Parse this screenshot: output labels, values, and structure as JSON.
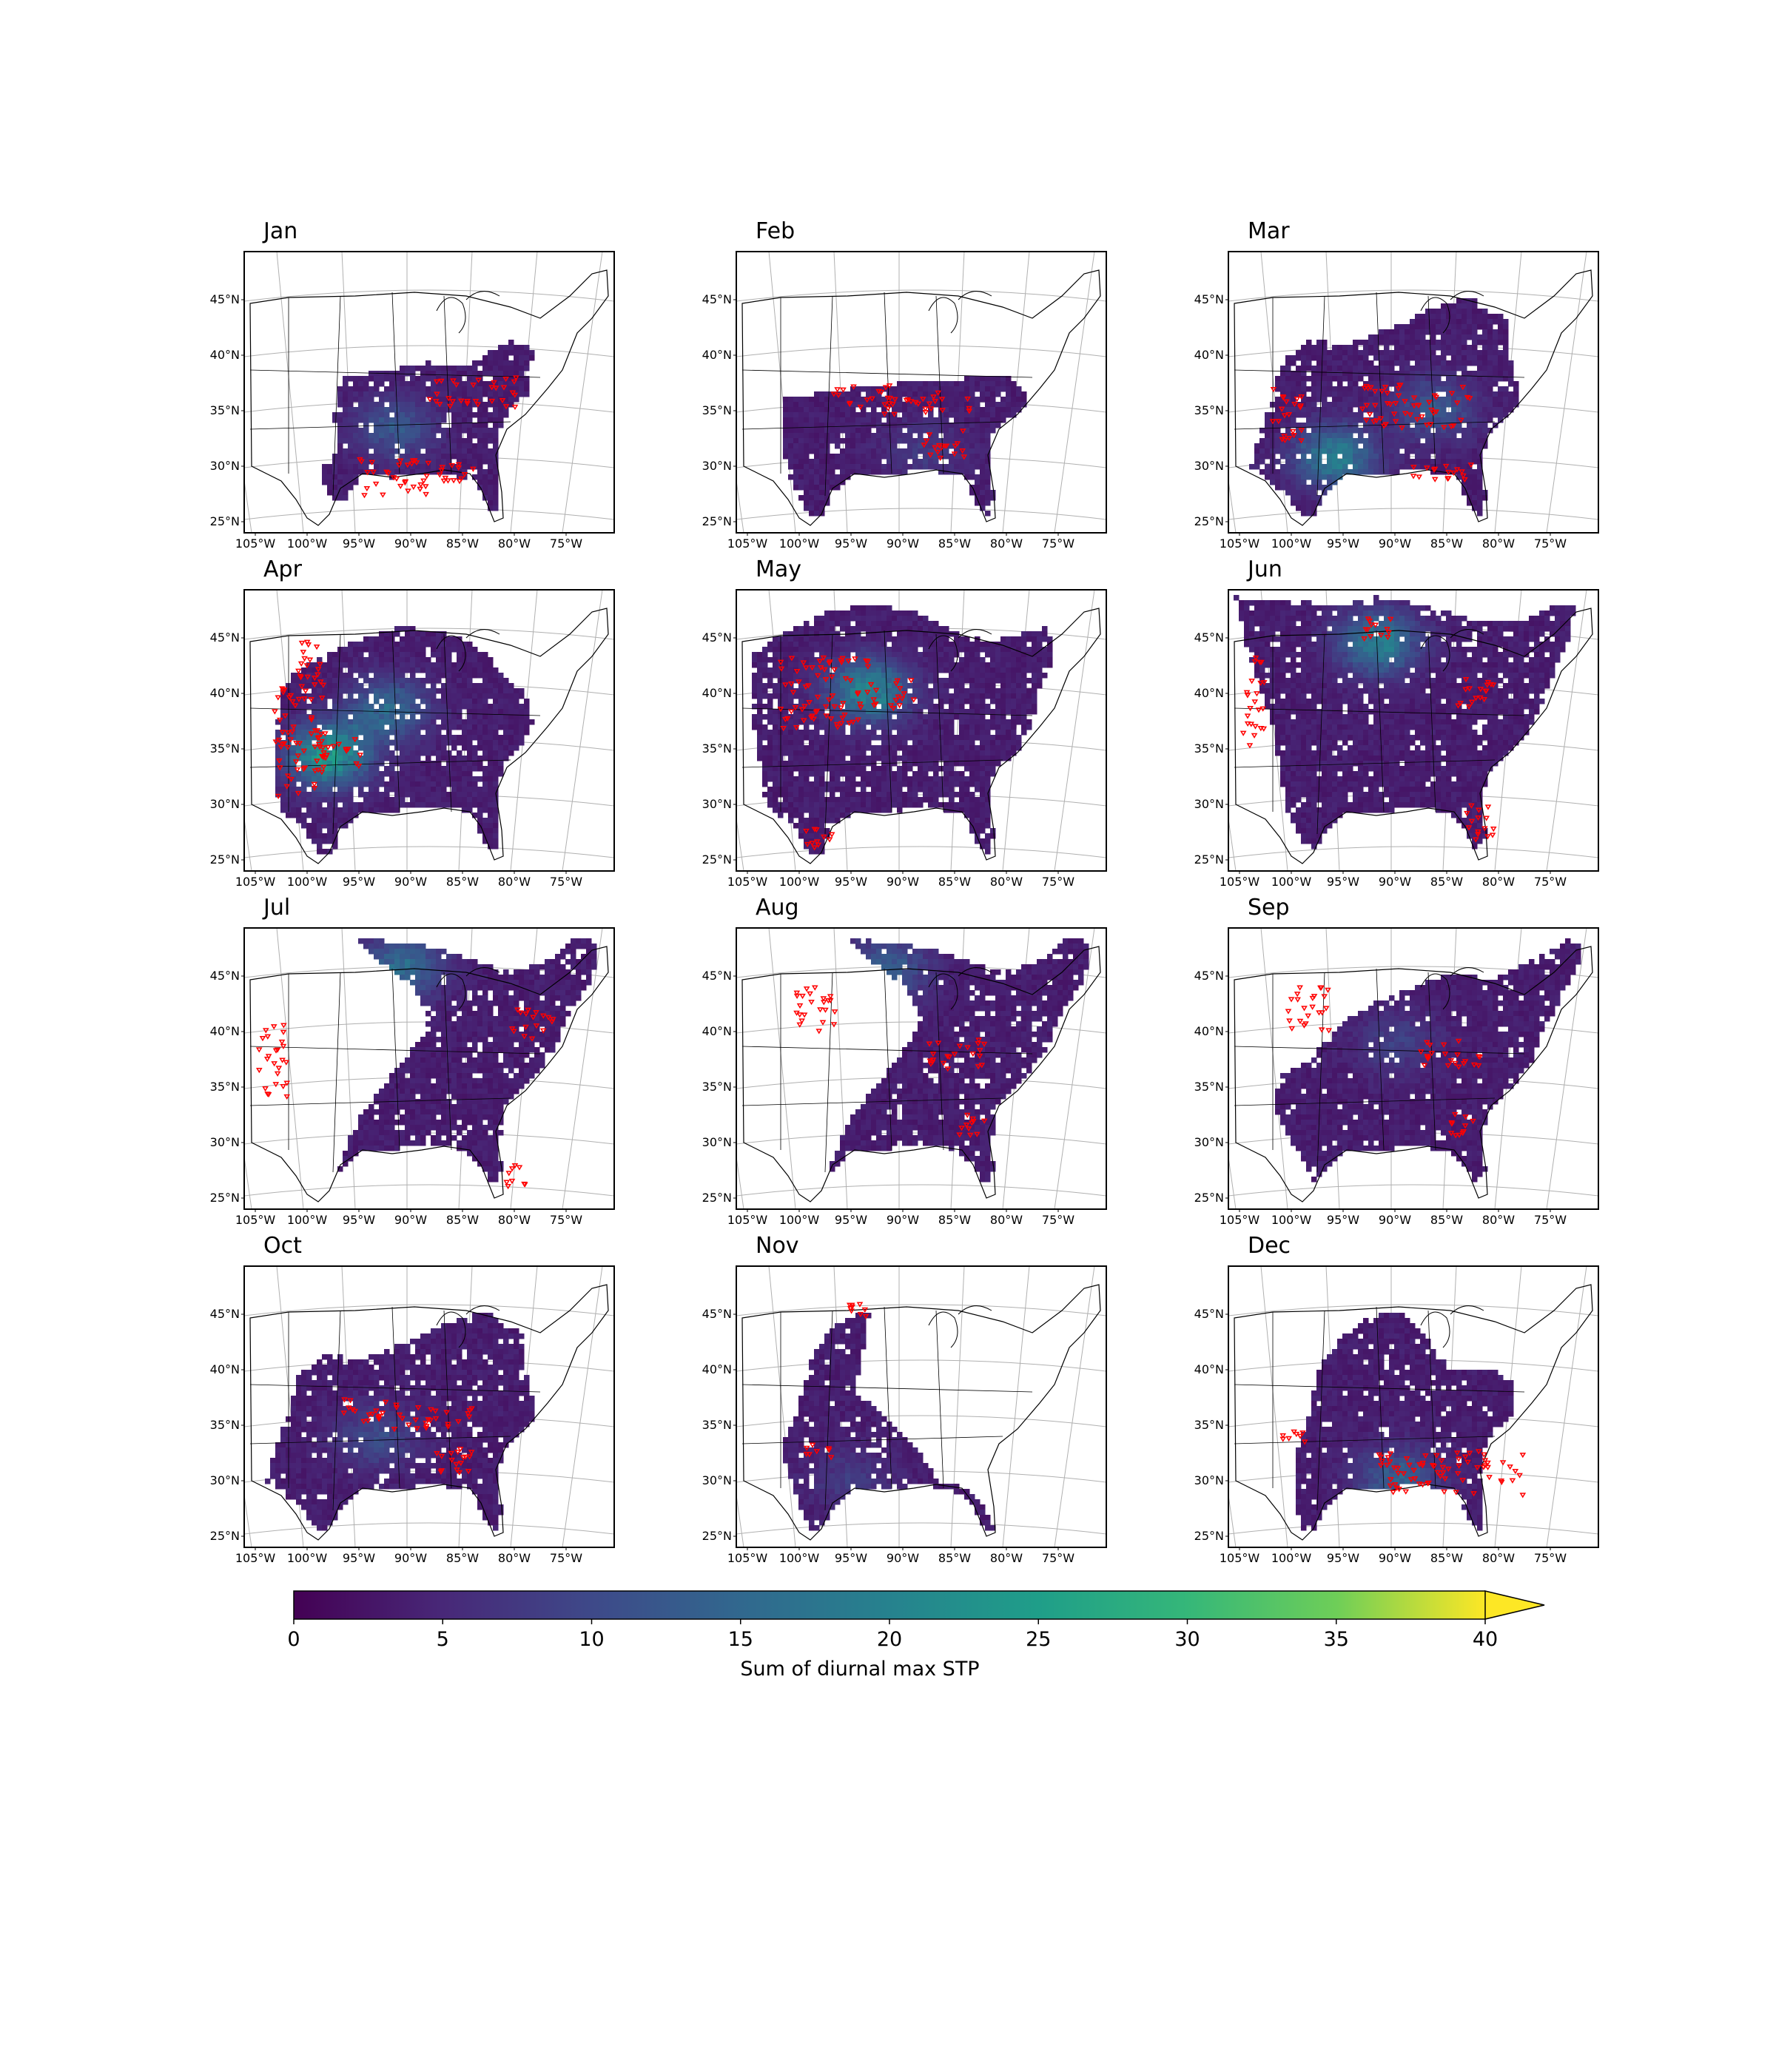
{
  "figure": {
    "panels": [
      {
        "month": "Jan",
        "coverage": "southeast",
        "hot": [
          [
            0.4,
            0.62,
            0.25
          ]
        ],
        "reports": "se"
      },
      {
        "month": "Feb",
        "coverage": "south",
        "hot": [
          [
            0.5,
            0.7,
            0.12
          ]
        ],
        "reports": "south"
      },
      {
        "month": "Mar",
        "coverage": "broad",
        "hot": [
          [
            0.28,
            0.72,
            0.45
          ],
          [
            0.55,
            0.55,
            0.25
          ]
        ],
        "reports": "midsouth"
      },
      {
        "month": "Apr",
        "coverage": "plains",
        "hot": [
          [
            0.22,
            0.58,
            0.6
          ],
          [
            0.38,
            0.42,
            0.35
          ]
        ],
        "reports": "plains"
      },
      {
        "month": "May",
        "coverage": "central",
        "hot": [
          [
            0.35,
            0.35,
            0.5
          ]
        ],
        "reports": "central"
      },
      {
        "month": "Jun",
        "coverage": "north",
        "hot": [
          [
            0.4,
            0.18,
            0.45
          ]
        ],
        "reports": "north"
      },
      {
        "month": "Jul",
        "coverage": "northeast",
        "hot": [
          [
            0.42,
            0.13,
            0.35
          ]
        ],
        "reports": "northeast"
      },
      {
        "month": "Aug",
        "coverage": "northeast",
        "hot": [
          [
            0.4,
            0.14,
            0.3
          ]
        ],
        "reports": "sparse"
      },
      {
        "month": "Sep",
        "coverage": "east",
        "hot": [
          [
            0.45,
            0.4,
            0.15
          ]
        ],
        "reports": "sparse"
      },
      {
        "month": "Oct",
        "coverage": "broad",
        "hot": [
          [
            0.35,
            0.6,
            0.2
          ]
        ],
        "reports": "south"
      },
      {
        "month": "Nov",
        "coverage": "narrow",
        "hot": [
          [
            0.3,
            0.75,
            0.12
          ]
        ],
        "reports": "few"
      },
      {
        "month": "Dec",
        "coverage": "gulf",
        "hot": [
          [
            0.45,
            0.75,
            0.3
          ]
        ],
        "reports": "gulf"
      }
    ],
    "lat_labels": [
      "45°N",
      "40°N",
      "35°N",
      "30°N",
      "25°N"
    ],
    "lon_labels": [
      "105°W",
      "100°W",
      "95°W",
      "90°W",
      "85°W",
      "80°W",
      "75°W"
    ],
    "colorbar": {
      "label": "Sum of diurnal max STP",
      "ticks": [
        "0",
        "5",
        "10",
        "15",
        "20",
        "25",
        "30",
        "35",
        "40"
      ],
      "min": 0,
      "max": 40,
      "extend": "max",
      "colormap": "viridis"
    },
    "report_marker_color": "#ff0000"
  }
}
